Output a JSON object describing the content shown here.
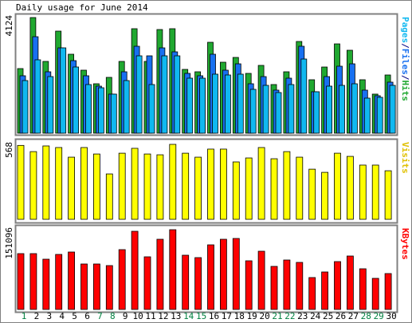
{
  "chart_data": {
    "type": "bar",
    "title": "Daily usage for June 2014",
    "categories": [
      "1",
      "2",
      "3",
      "4",
      "5",
      "6",
      "7",
      "8",
      "9",
      "10",
      "11",
      "12",
      "13",
      "14",
      "15",
      "16",
      "17",
      "18",
      "19",
      "20",
      "21",
      "22",
      "23",
      "24",
      "25",
      "26",
      "27",
      "28",
      "29",
      "30"
    ],
    "category_label_colors": [
      "#008040",
      "#000000",
      "#000000",
      "#000000",
      "#000000",
      "#000000",
      "#008040",
      "#008040",
      "#000000",
      "#000000",
      "#000000",
      "#000000",
      "#000000",
      "#008040",
      "#008040",
      "#000000",
      "#000000",
      "#000000",
      "#000000",
      "#000000",
      "#008040",
      "#008040",
      "#000000",
      "#000000",
      "#000000",
      "#000000",
      "#000000",
      "#008040",
      "#008040",
      "#000000"
    ],
    "legend_separator": "/",
    "panels": [
      {
        "ylim": [
          0,
          4124
        ],
        "yticks": [
          4124
        ],
        "series": [
          {
            "name": "Hits",
            "color": "#20a830",
            "values": [
              2304,
              4124,
              2560,
              3640,
              2816,
              2247,
              1763,
              1991,
              2560,
              3726,
              2560,
              3697,
              3726,
              2275,
              2190,
              3242,
              2531,
              2702,
              2133,
              2418,
              1735,
              2190,
              3271,
              1906,
              2360,
              3185,
              2958,
              1906,
              1394,
              2076
            ]
          },
          {
            "name": "Files",
            "color": "#1870f0",
            "values": [
              2048,
              3441,
              2190,
              3043,
              2588,
              2048,
              1678,
              1394,
              2190,
              3100,
              2759,
              3043,
              2901,
              2133,
              2048,
              2816,
              2247,
              2474,
              1763,
              2019,
              1536,
              1962,
              3100,
              1479,
              2019,
              2389,
              2474,
              1536,
              1337,
              1820
            ]
          },
          {
            "name": "Pages",
            "color": "#10b8f0",
            "values": [
              1877,
              2617,
              2019,
              3043,
              2361,
              1735,
              1621,
              1394,
              1877,
              2759,
              1735,
              2759,
              2759,
              1962,
              1962,
              2105,
              2076,
              2105,
              1564,
              1706,
              1450,
              1735,
              2645,
              1479,
              1678,
              1706,
              1763,
              1251,
              1280,
              1706
            ]
          }
        ]
      },
      {
        "ylim": [
          0,
          568
        ],
        "yticks": [
          568
        ],
        "series": [
          {
            "name": "Visits",
            "color": "#ffff00",
            "values": [
              560,
              513,
              556,
              544,
              471,
              544,
              495,
              344,
              501,
              538,
              495,
              489,
              568,
              501,
              471,
              532,
              532,
              435,
              465,
              544,
              459,
              513,
              471,
              380,
              356,
              501,
              477,
              411,
              411,
              368
            ]
          }
        ]
      },
      {
        "ylim": [
          0,
          151096
        ],
        "yticks": [
          151096
        ],
        "series": [
          {
            "name": "KBytes",
            "color": "#ff0000",
            "values": [
              105770,
              105770,
              95193,
              104259,
              108792,
              86127,
              86127,
              83105,
              113325,
              148074,
              99726,
              132968,
              151096,
              102748,
              98215,
              122391,
              132968,
              134479,
              92171,
              110303,
              81594,
              93682,
              89149,
              60440,
              71017,
              90660,
              101237,
              77061,
              58929,
              67995
            ]
          }
        ]
      }
    ]
  }
}
